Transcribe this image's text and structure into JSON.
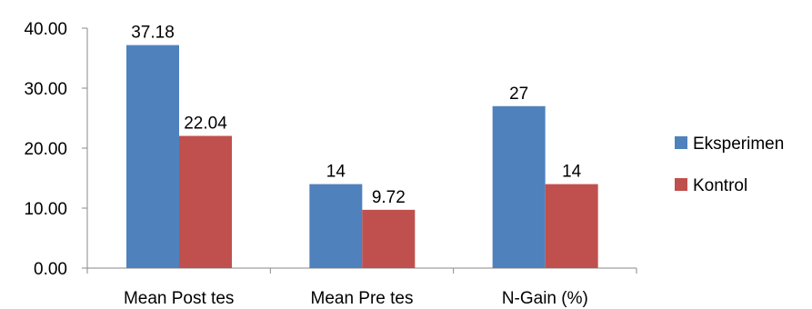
{
  "chart_data": {
    "type": "bar",
    "categories": [
      "Mean Post tes",
      "Mean Pre tes",
      "N-Gain (%)"
    ],
    "series": [
      {
        "name": "Eksperimen",
        "color": "#4F81BD",
        "values": [
          37.18,
          14,
          27
        ],
        "labels": [
          "37.18",
          "14",
          "27"
        ]
      },
      {
        "name": "Kontrol",
        "color": "#C0504D",
        "values": [
          22.04,
          9.72,
          14
        ],
        "labels": [
          "22.04",
          "9.72",
          "14"
        ]
      }
    ],
    "y_ticks": [
      "0.00",
      "10.00",
      "20.00",
      "30.00",
      "40.00"
    ],
    "ylim": [
      0,
      40
    ],
    "grid": false,
    "legend_position": "right"
  }
}
